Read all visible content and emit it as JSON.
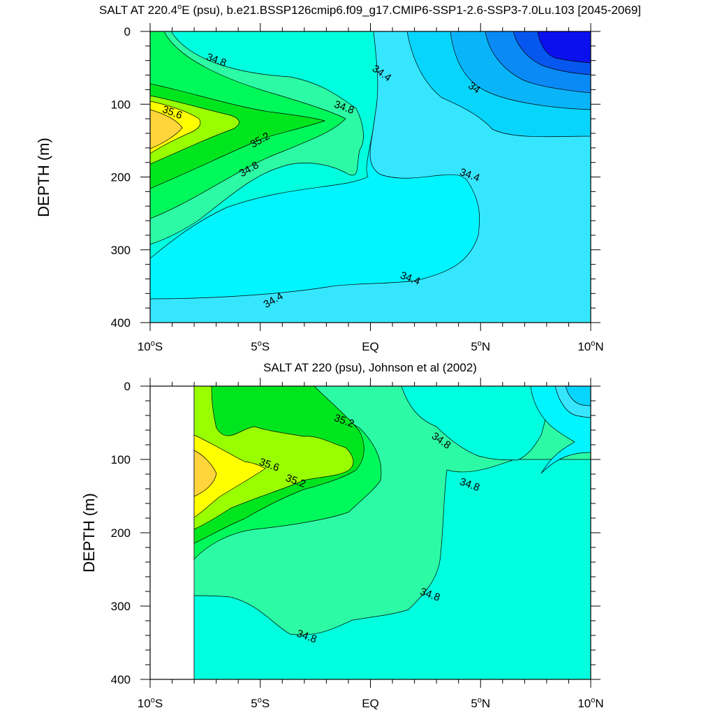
{
  "chart_data": [
    {
      "type": "contour",
      "title_prefix": "SALT AT 220.4",
      "title_sup": "o",
      "title_suffix": "E (psu), b.e21.BSSP126cmip6.f09_g17.CMIP6-SSP1-2.6-SSP3-7.0Lu.103 [2045-2069]",
      "ylabel": "DEPTH (m)",
      "xlabel": "",
      "x_ticks": [
        {
          "num": "10",
          "sup": "o",
          "hemi": "S",
          "x": -10
        },
        {
          "num": "5",
          "sup": "o",
          "hemi": "S",
          "x": -5
        },
        {
          "num": "EQ",
          "sup": "",
          "hemi": "",
          "x": 0
        },
        {
          "num": "5",
          "sup": "o",
          "hemi": "N",
          "x": 5
        },
        {
          "num": "10",
          "sup": "o",
          "hemi": "N",
          "x": 10
        }
      ],
      "y_ticks": [
        "0",
        "100",
        "200",
        "300",
        "400"
      ],
      "xlim": [
        -10,
        10
      ],
      "ylim": [
        0,
        400
      ],
      "y_reversed": true,
      "contour_interval": 0.2,
      "colors": {
        "33.2": "#0a10ee",
        "33.4": "#0656f0",
        "33.6": "#0a8af5",
        "33.8": "#0ab4f8",
        "34.0": "#08d5fb",
        "34.2": "#36e6ff",
        "34.4": "#00f5ff",
        "34.6": "#00ffde",
        "34.8": "#2cfaa5",
        "35.0": "#00f95a",
        "35.2": "#00e61e",
        "35.4": "#99ff00",
        "35.6": "#ffff00",
        "35.8": "#ffd53b"
      },
      "contour_labels": [
        {
          "text": "34.8",
          "lon": -7.0,
          "depth": 40
        },
        {
          "text": "34.8",
          "lon": -1.2,
          "depth": 105
        },
        {
          "text": "35.6",
          "lon": -9.0,
          "depth": 112
        },
        {
          "text": "35.2",
          "lon": -5.0,
          "depth": 150
        },
        {
          "text": "34.8",
          "lon": -5.5,
          "depth": 190
        },
        {
          "text": "34.4",
          "lon": 0.5,
          "depth": 58
        },
        {
          "text": "34",
          "lon": 4.7,
          "depth": 78
        },
        {
          "text": "34.4",
          "lon": 4.5,
          "depth": 198
        },
        {
          "text": "34.4",
          "lon": 1.8,
          "depth": 340
        },
        {
          "text": "34.4",
          "lon": -4.4,
          "depth": 370
        }
      ]
    },
    {
      "type": "contour",
      "title_prefix": "SALT AT 220 (psu), Johnson et al (2002)",
      "title_sup": "",
      "title_suffix": "",
      "ylabel": "DEPTH (m)",
      "xlabel": "",
      "x_ticks": [
        {
          "num": "10",
          "sup": "o",
          "hemi": "S",
          "x": -10
        },
        {
          "num": "5",
          "sup": "o",
          "hemi": "S",
          "x": -5
        },
        {
          "num": "EQ",
          "sup": "",
          "hemi": "",
          "x": 0
        },
        {
          "num": "5",
          "sup": "o",
          "hemi": "N",
          "x": 5
        },
        {
          "num": "10",
          "sup": "o",
          "hemi": "N",
          "x": 10
        }
      ],
      "y_ticks": [
        "0",
        "100",
        "200",
        "300",
        "400"
      ],
      "xlim": [
        -10,
        10
      ],
      "ylim": [
        0,
        400
      ],
      "y_reversed": true,
      "data_xlim": [
        -8,
        10
      ],
      "contour_interval": 0.2,
      "colors": {
        "34.0": "#08d5fb",
        "34.2": "#36e6ff",
        "34.4": "#00f5ff",
        "34.6": "#00ffde",
        "34.8": "#2cfaa5",
        "35.0": "#00f95a",
        "35.2": "#00e61e",
        "35.4": "#99ff00",
        "35.6": "#ffff00",
        "35.8": "#ffd53b"
      },
      "contour_labels": [
        {
          "text": "35.2",
          "lon": -1.2,
          "depth": 48
        },
        {
          "text": "34.8",
          "lon": 3.2,
          "depth": 75
        },
        {
          "text": "35.6",
          "lon": -4.6,
          "depth": 108
        },
        {
          "text": "35.2",
          "lon": -3.4,
          "depth": 130
        },
        {
          "text": "34.8",
          "lon": 4.5,
          "depth": 135
        },
        {
          "text": "34.8",
          "lon": 2.7,
          "depth": 285
        },
        {
          "text": "34.8",
          "lon": -2.9,
          "depth": 342
        }
      ]
    }
  ]
}
